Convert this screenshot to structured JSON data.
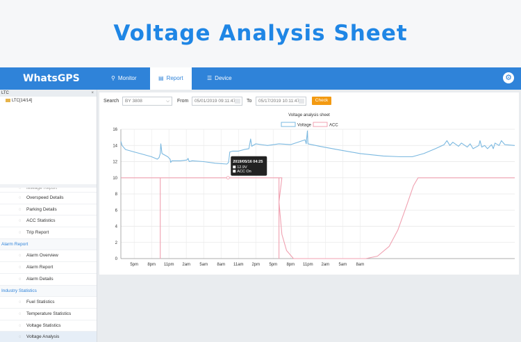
{
  "banner": {
    "title": "Voltage Analysis Sheet"
  },
  "nav": {
    "logo": "WhatsGPS",
    "items": [
      {
        "label": "Monitor",
        "icon": "location-pin-icon"
      },
      {
        "label": "Report",
        "icon": "report-icon"
      },
      {
        "label": "Device",
        "icon": "device-list-icon"
      }
    ],
    "active": "Report",
    "settings_icon": "settings-icon"
  },
  "sidebar": {
    "header": "LTC",
    "close": "×",
    "tree_node": "LTC[14/14]",
    "menu": [
      {
        "type": "item",
        "label": "Mileage Report",
        "icon": "mileage-icon",
        "cut": true
      },
      {
        "type": "item",
        "label": "Overspeed Details",
        "icon": "speed-icon"
      },
      {
        "type": "item",
        "label": "Parking Details",
        "icon": "parking-icon"
      },
      {
        "type": "item",
        "label": "ACC Statistics",
        "icon": "acc-icon"
      },
      {
        "type": "item",
        "label": "Trip Report",
        "icon": "trip-icon"
      },
      {
        "type": "group",
        "label": "Alarm Report"
      },
      {
        "type": "item",
        "label": "Alarm Overview",
        "icon": "bell-icon"
      },
      {
        "type": "item",
        "label": "Alarm Report",
        "icon": "alarm-icon"
      },
      {
        "type": "item",
        "label": "Alarm Details",
        "icon": "details-icon"
      },
      {
        "type": "group",
        "label": "Industry Statistics"
      },
      {
        "type": "item",
        "label": "Fuel Statistics",
        "icon": "fuel-icon"
      },
      {
        "type": "item",
        "label": "Temperature Statistics",
        "icon": "thermometer-icon"
      },
      {
        "type": "item",
        "label": "Voltage Statistics",
        "icon": "voltage-icon"
      },
      {
        "type": "item",
        "label": "Voltage Analysis",
        "icon": "chart-icon",
        "selected": true
      }
    ]
  },
  "filters": {
    "search_label": "Search",
    "search_value": "BY 3808",
    "from_label": "From",
    "from_value": "05/01/2019 09:11:47",
    "to_label": "To",
    "to_value": "05/17/2019 10:11:47",
    "check_label": "Check"
  },
  "chart_data": {
    "type": "line",
    "title": "Voltage analysis sheet",
    "legend": [
      "Voltage",
      "ACC"
    ],
    "legend_position": "top-center",
    "colors": {
      "voltage": "#7ab8e0",
      "acc": "#f0a0b0",
      "accent": "#2f83d9",
      "check": "#f39a12"
    },
    "ylim": [
      0,
      16
    ],
    "yticks": [
      "0",
      "2",
      "4",
      "6",
      "8",
      "10",
      "12",
      "14",
      "16"
    ],
    "xticks": [
      "5pm",
      "8pm",
      "11pm",
      "2am",
      "5am",
      "8am",
      "11am",
      "2pm",
      "5pm",
      "8pm",
      "11pm",
      "2am",
      "5am",
      "8am"
    ],
    "grid": true,
    "x_hours": [
      0,
      3,
      6,
      9,
      12,
      15,
      18,
      21,
      24,
      27,
      30,
      33,
      36,
      39
    ],
    "series": [
      {
        "name": "Voltage",
        "points": [
          [
            -2.3,
            14.5
          ],
          [
            -2.1,
            14.0
          ],
          [
            -1.5,
            13.5
          ],
          [
            0,
            13.2
          ],
          [
            1.5,
            12.9
          ],
          [
            3,
            12.6
          ],
          [
            4,
            12.3
          ],
          [
            4.3,
            12.5
          ],
          [
            4.5,
            13.0
          ],
          [
            4.6,
            14.2
          ],
          [
            4.8,
            13.0
          ],
          [
            5.8,
            12.6
          ],
          [
            6.2,
            12.3
          ],
          [
            6.3,
            11.9
          ],
          [
            6.5,
            12.1
          ],
          [
            8,
            12.1
          ],
          [
            9.1,
            12.2
          ],
          [
            9.3,
            12.4
          ],
          [
            9.5,
            12.0
          ],
          [
            10,
            12.1
          ],
          [
            12,
            12.0
          ],
          [
            14,
            11.8
          ],
          [
            16,
            11.7
          ],
          [
            16.3,
            11.9
          ],
          [
            16.5,
            13.2
          ],
          [
            17,
            13.3
          ],
          [
            18,
            13.3
          ],
          [
            19,
            13.5
          ],
          [
            19.8,
            13.6
          ],
          [
            20.1,
            14.8
          ],
          [
            20.3,
            13.9
          ],
          [
            21,
            14.2
          ],
          [
            23,
            14.0
          ],
          [
            25,
            14.2
          ],
          [
            27,
            14.1
          ],
          [
            29.5,
            14.7
          ],
          [
            29.7,
            14.2
          ],
          [
            29.9,
            15.8
          ],
          [
            30,
            14.2
          ],
          [
            32,
            13.9
          ],
          [
            35,
            13.5
          ],
          [
            39,
            13.0
          ],
          [
            43,
            12.7
          ],
          [
            46,
            12.6
          ],
          [
            48,
            12.6
          ],
          [
            50,
            13.0
          ],
          [
            52,
            13.6
          ],
          [
            53.5,
            14.1
          ],
          [
            54,
            14.6
          ],
          [
            54.5,
            14.0
          ],
          [
            55,
            14.4
          ],
          [
            56,
            13.9
          ],
          [
            56.5,
            14.3
          ],
          [
            57.5,
            13.8
          ],
          [
            58,
            14.2
          ],
          [
            58.5,
            13.6
          ],
          [
            59.5,
            14.0
          ],
          [
            59.7,
            14.6
          ],
          [
            60,
            13.8
          ],
          [
            60.5,
            14.0
          ],
          [
            61,
            13.6
          ],
          [
            61.7,
            14.1
          ],
          [
            62,
            13.6
          ],
          [
            62.3,
            14.3
          ],
          [
            63,
            14.0
          ],
          [
            63.4,
            14.6
          ],
          [
            64,
            14.1
          ],
          [
            65.7,
            14.0
          ]
        ]
      },
      {
        "name": "ACC",
        "points": [
          [
            -2.3,
            10
          ],
          [
            4.5,
            10
          ],
          [
            4.5,
            0
          ],
          [
            4.5,
            10
          ],
          [
            25,
            10
          ],
          [
            25,
            0
          ],
          [
            25,
            10
          ],
          [
            25.5,
            10
          ],
          [
            25.0,
            7
          ],
          [
            25.5,
            3
          ],
          [
            26.3,
            1
          ],
          [
            27.5,
            0
          ],
          [
            40,
            0
          ],
          [
            42,
            0.3
          ],
          [
            44,
            1.5
          ],
          [
            45.5,
            3.5
          ],
          [
            47,
            6.5
          ],
          [
            48.2,
            9
          ],
          [
            49,
            10
          ],
          [
            65.7,
            10
          ]
        ]
      }
    ],
    "tooltip": {
      "title": "2019/05/16 04:25",
      "lines": [
        "12.9V",
        "ACC On"
      ],
      "at": [
        16.2,
        10
      ]
    }
  }
}
